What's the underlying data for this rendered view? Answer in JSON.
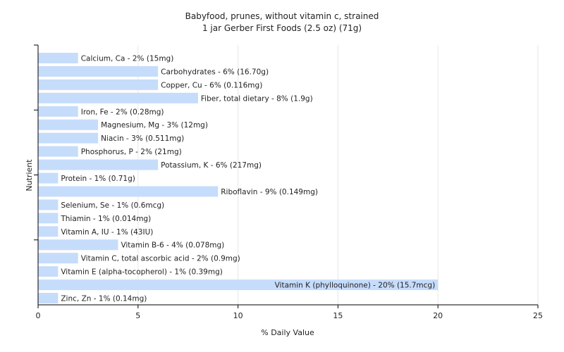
{
  "chart_data": {
    "type": "bar",
    "orientation": "horizontal",
    "title": "Babyfood, prunes, without vitamin c, strained",
    "subtitle": "1 jar Gerber First Foods (2.5 oz) (71g)",
    "xlabel": "% Daily Value",
    "ylabel": "Nutrient",
    "xlim": [
      0,
      25
    ],
    "xticks": [
      0,
      5,
      10,
      15,
      20,
      25
    ],
    "grid": "vertical",
    "bar_color": "#c6dcfb",
    "categories": [
      "Calcium, Ca",
      "Carbohydrates",
      "Copper, Cu",
      "Fiber, total dietary",
      "Iron, Fe",
      "Magnesium, Mg",
      "Niacin",
      "Phosphorus, P",
      "Potassium, K",
      "Protein",
      "Riboflavin",
      "Selenium, Se",
      "Thiamin",
      "Vitamin A, IU",
      "Vitamin B-6",
      "Vitamin C, total ascorbic acid",
      "Vitamin E (alpha-tocopherol)",
      "Vitamin K (phylloquinone)",
      "Zinc, Zn"
    ],
    "values": [
      2,
      6,
      6,
      8,
      2,
      3,
      3,
      2,
      6,
      1,
      9,
      1,
      1,
      1,
      4,
      2,
      1,
      20,
      1
    ],
    "labels": [
      "Calcium, Ca - 2% (15mg)",
      "Carbohydrates - 6% (16.70g)",
      "Copper, Cu - 6% (0.116mg)",
      "Fiber, total dietary - 8% (1.9g)",
      "Iron, Fe - 2% (0.28mg)",
      "Magnesium, Mg - 3% (12mg)",
      "Niacin - 3% (0.511mg)",
      "Phosphorus, P - 2% (21mg)",
      "Potassium, K - 6% (217mg)",
      "Protein - 1% (0.71g)",
      "Riboflavin - 9% (0.149mg)",
      "Selenium, Se - 1% (0.6mcg)",
      "Thiamin - 1% (0.014mg)",
      "Vitamin A, IU - 1% (43IU)",
      "Vitamin B-6 - 4% (0.078mg)",
      "Vitamin C, total ascorbic acid - 2% (0.9mg)",
      "Vitamin E (alpha-tocopherol) - 1% (0.39mg)",
      "Vitamin K (phylloquinone) - 20% (15.7mcg)",
      "Zinc, Zn - 1% (0.14mg)"
    ]
  }
}
